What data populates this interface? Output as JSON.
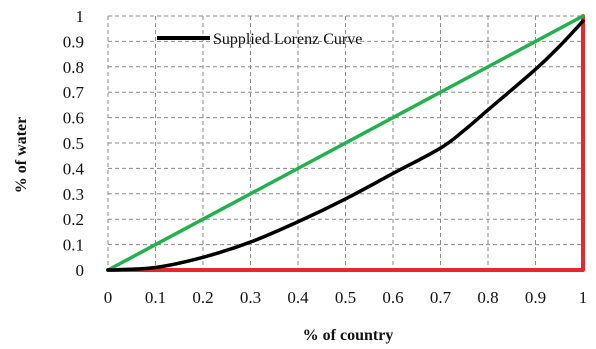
{
  "chart_data": {
    "type": "line",
    "xlabel": "% of country",
    "ylabel": "% of water",
    "xlim": [
      0,
      1
    ],
    "ylim": [
      0,
      1
    ],
    "x_ticks": [
      "0",
      "0.1",
      "0.2",
      "0.3",
      "0.4",
      "0.5",
      "0.6",
      "0.7",
      "0.8",
      "0.9",
      "1"
    ],
    "y_ticks": [
      "0",
      "0.1",
      "0.2",
      "0.3",
      "0.4",
      "0.5",
      "0.6",
      "0.7",
      "0.8",
      "0.9",
      "1"
    ],
    "grid": true,
    "legend_position": "top-left",
    "series": [
      {
        "name": "Supplied Lorenz Curve",
        "color": "#000000",
        "x": [
          0,
          0.1,
          0.2,
          0.3,
          0.4,
          0.5,
          0.6,
          0.7,
          0.75,
          0.8,
          0.9,
          0.95,
          1.0
        ],
        "y": [
          0,
          0.01,
          0.05,
          0.11,
          0.19,
          0.28,
          0.38,
          0.48,
          0.55,
          0.63,
          0.79,
          0.88,
          0.98
        ]
      },
      {
        "name": "",
        "color": "#22b14c",
        "x": [
          0,
          1
        ],
        "y": [
          0,
          1
        ]
      },
      {
        "name": "",
        "color": "#e8262b",
        "x": [
          0,
          1,
          1
        ],
        "y": [
          0,
          0,
          1
        ]
      }
    ]
  }
}
